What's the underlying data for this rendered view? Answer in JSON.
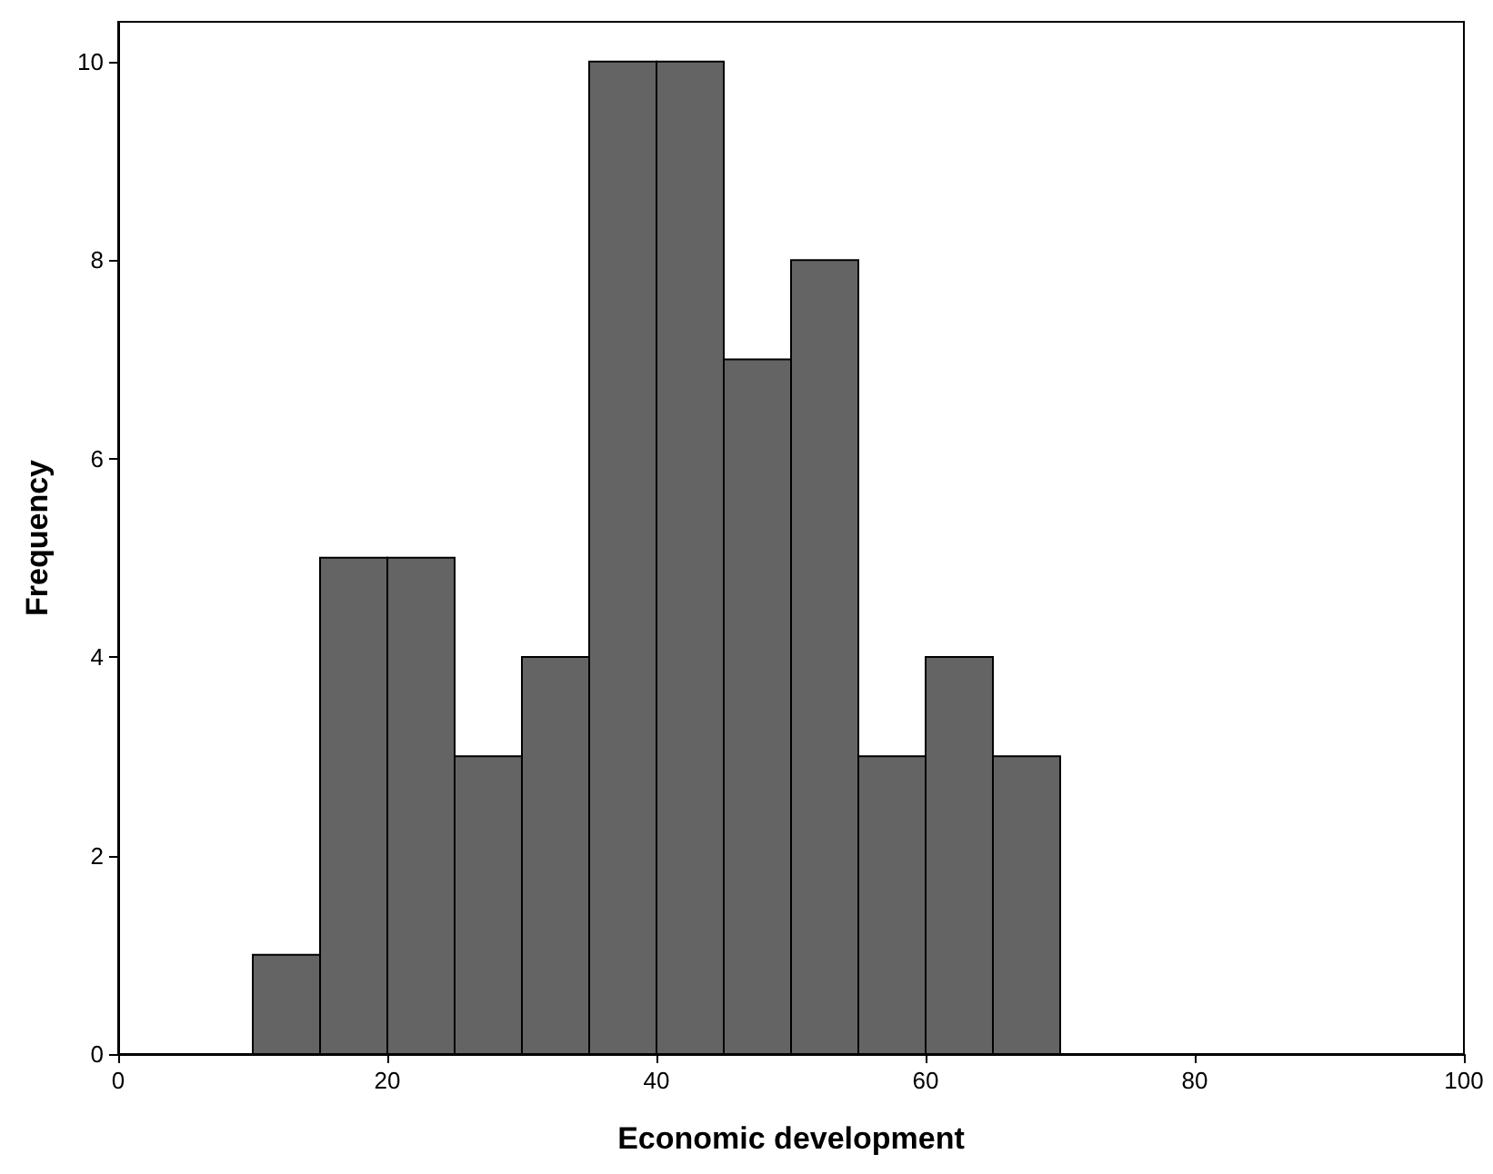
{
  "chart_data": {
    "type": "histogram",
    "xlabel": "Economic development",
    "ylabel": "Frequency",
    "bins": [
      10,
      15,
      20,
      25,
      30,
      35,
      40,
      45,
      50,
      55,
      60,
      65,
      70
    ],
    "values": [
      1,
      5,
      5,
      3,
      4,
      10,
      10,
      7,
      8,
      3,
      4,
      3
    ],
    "color": "#646464",
    "xlim": [
      0,
      100
    ],
    "xticks": [
      0,
      20,
      40,
      60,
      80,
      100
    ],
    "ylim": [
      0,
      10.4
    ],
    "yticks": [
      0,
      2,
      4,
      6,
      8,
      10
    ]
  }
}
